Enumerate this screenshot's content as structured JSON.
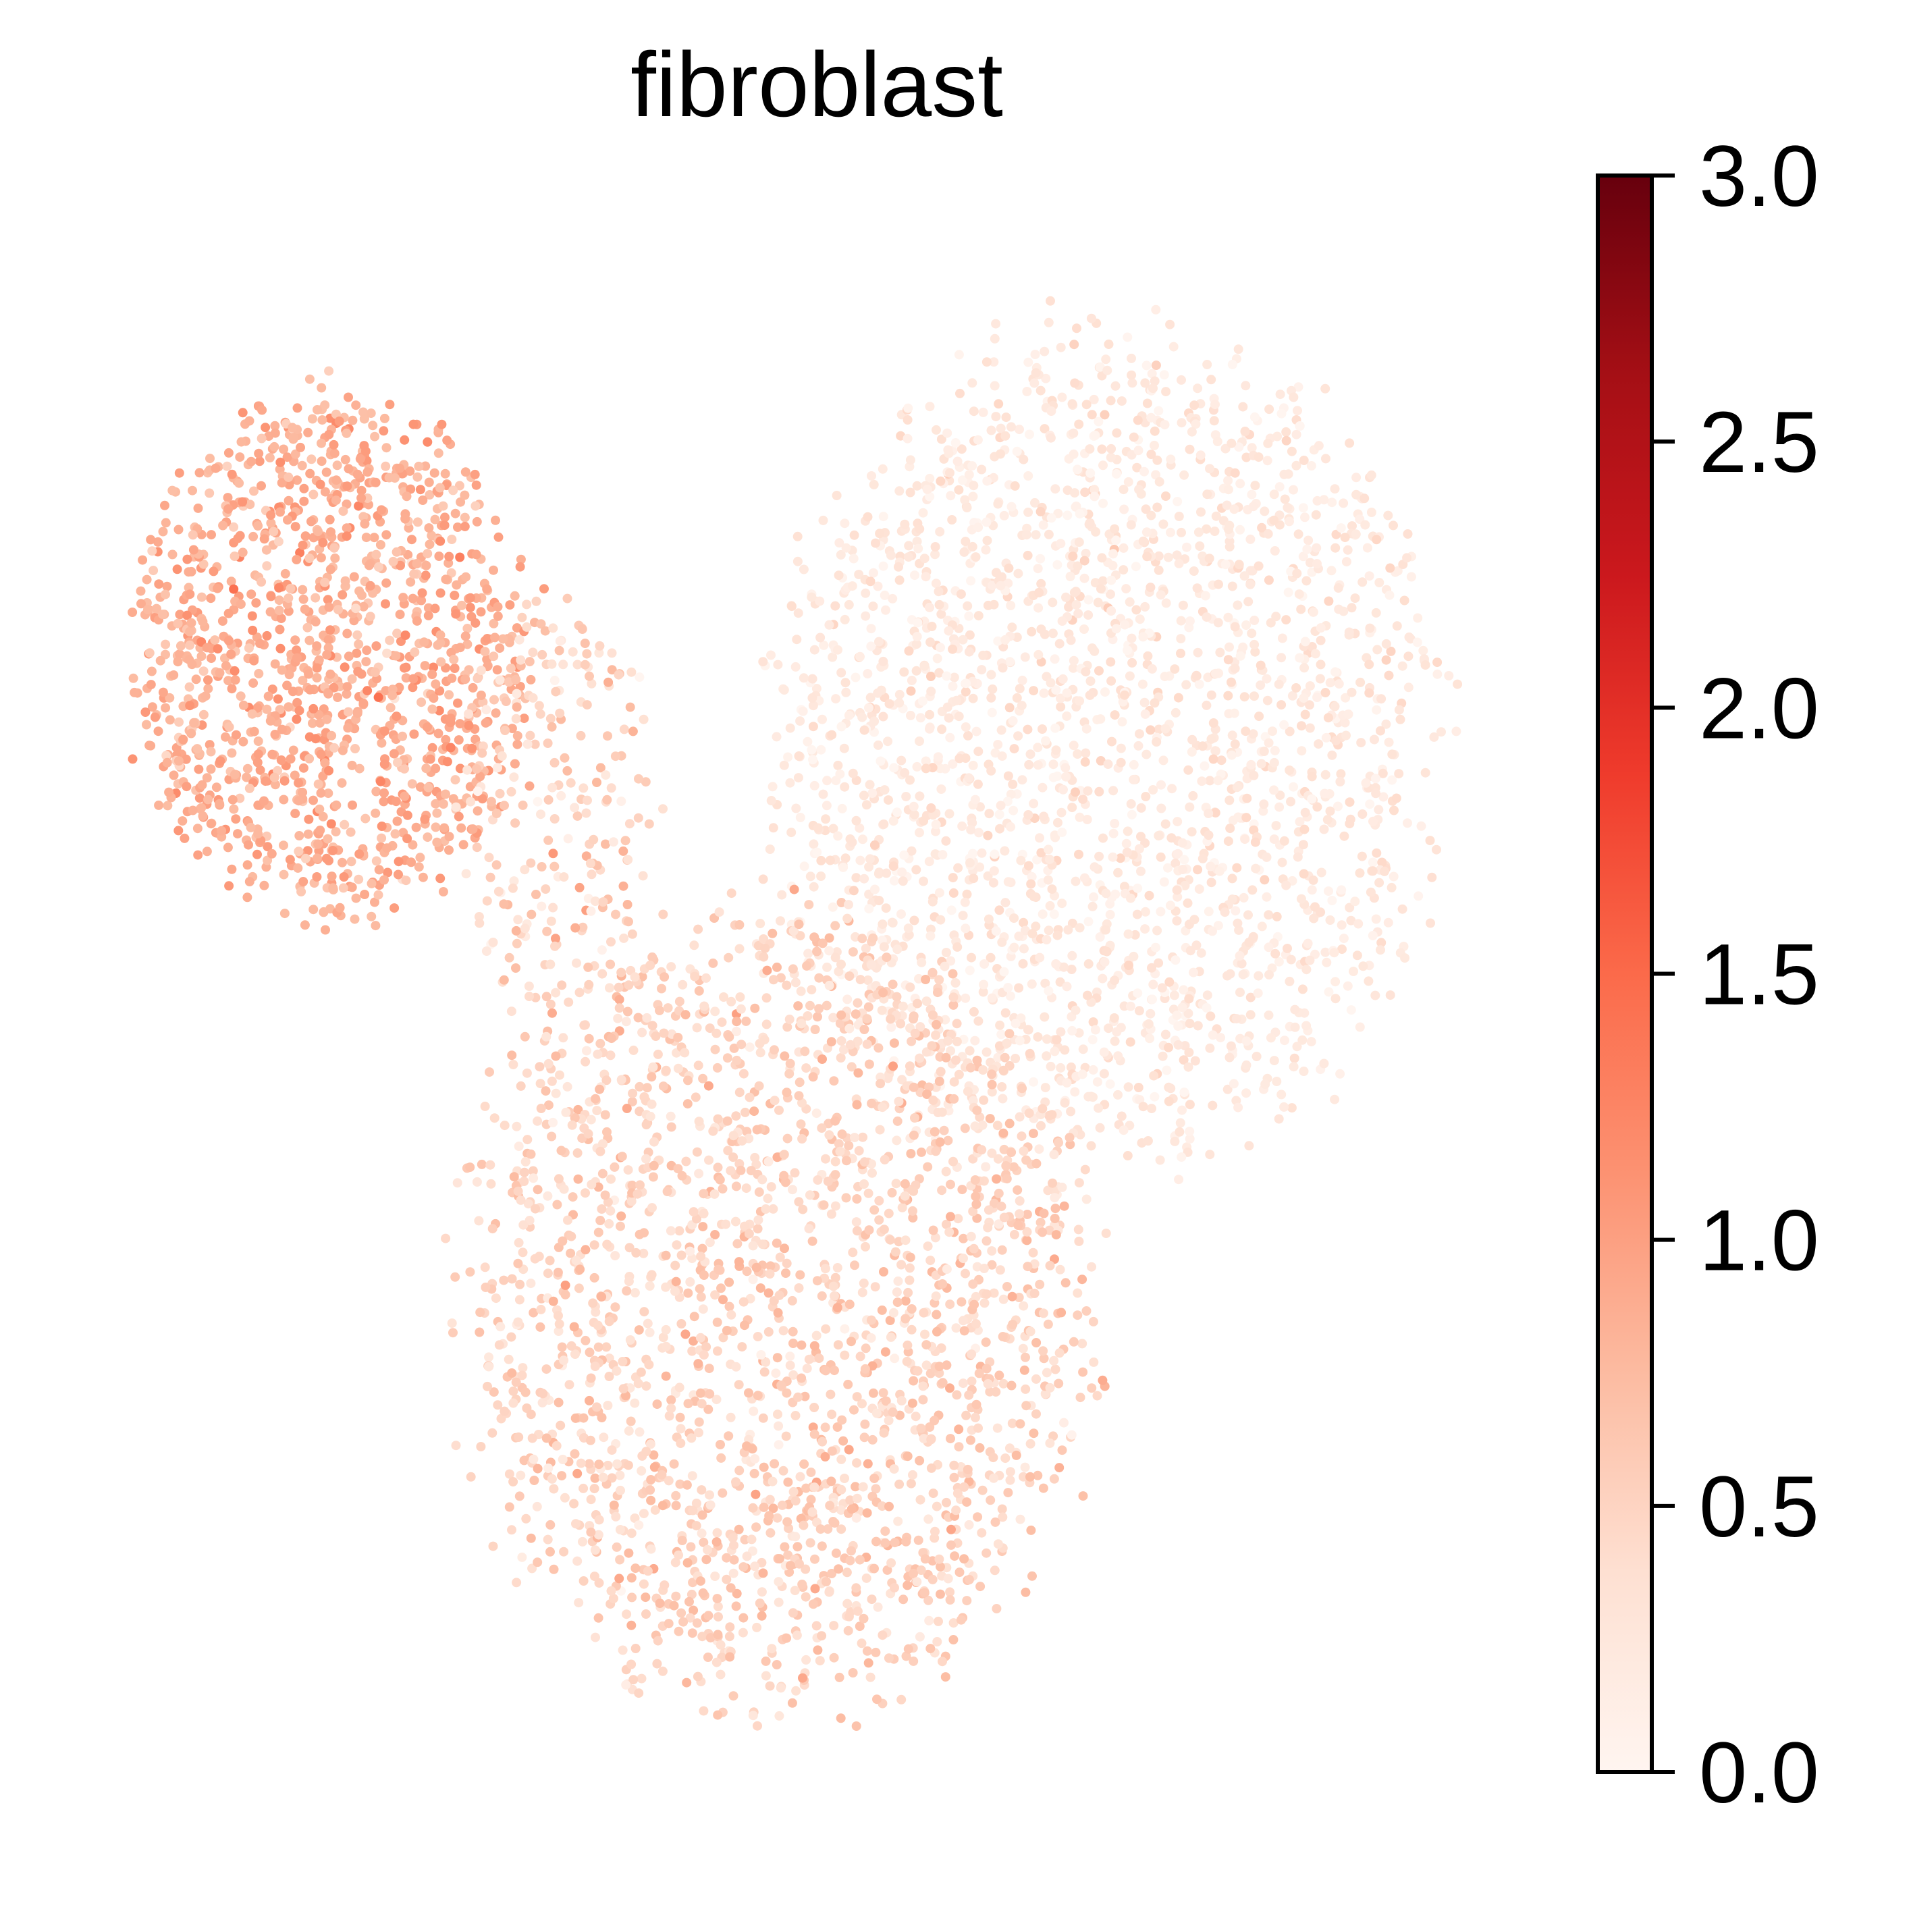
{
  "chart_data": {
    "type": "scatter",
    "title": "fibroblast",
    "xlabel": "",
    "ylabel": "",
    "axes_visible": false,
    "grid": false,
    "point_count": 6000,
    "colorbar": {
      "colormap": "Reds",
      "vmin": 0.0,
      "vmax": 3.0,
      "ticks": [
        "0.0",
        "0.5",
        "1.0",
        "1.5",
        "2.0",
        "2.5",
        "3.0"
      ],
      "tick_values": [
        0.0,
        0.5,
        1.0,
        1.5,
        2.0,
        2.5,
        3.0
      ],
      "color_stops": [
        "#fff5f0",
        "#fee0d2",
        "#fcbba1",
        "#fc9272",
        "#fb6a4a",
        "#ef3b2c",
        "#cb181d",
        "#a50f15",
        "#67000d"
      ],
      "placement": "right"
    },
    "clusters": [
      {
        "label": "upper-left cluster",
        "cx": 0.16,
        "cy": 0.72,
        "rx": 0.14,
        "ry": 0.17,
        "share": 0.22,
        "mean_value": 0.85,
        "spread": 0.15
      },
      {
        "label": "upper-right cluster",
        "cx": 0.7,
        "cy": 0.66,
        "rx": 0.23,
        "ry": 0.27,
        "share": 0.38,
        "mean_value": 0.22,
        "spread": 0.12
      },
      {
        "label": "lower cluster",
        "cx": 0.47,
        "cy": 0.3,
        "rx": 0.22,
        "ry": 0.26,
        "share": 0.36,
        "mean_value": 0.5,
        "spread": 0.15
      },
      {
        "label": "bridge strand",
        "cx": 0.32,
        "cy": 0.62,
        "rx": 0.07,
        "ry": 0.14,
        "share": 0.04,
        "mean_value": 0.5,
        "spread": 0.2
      }
    ]
  }
}
